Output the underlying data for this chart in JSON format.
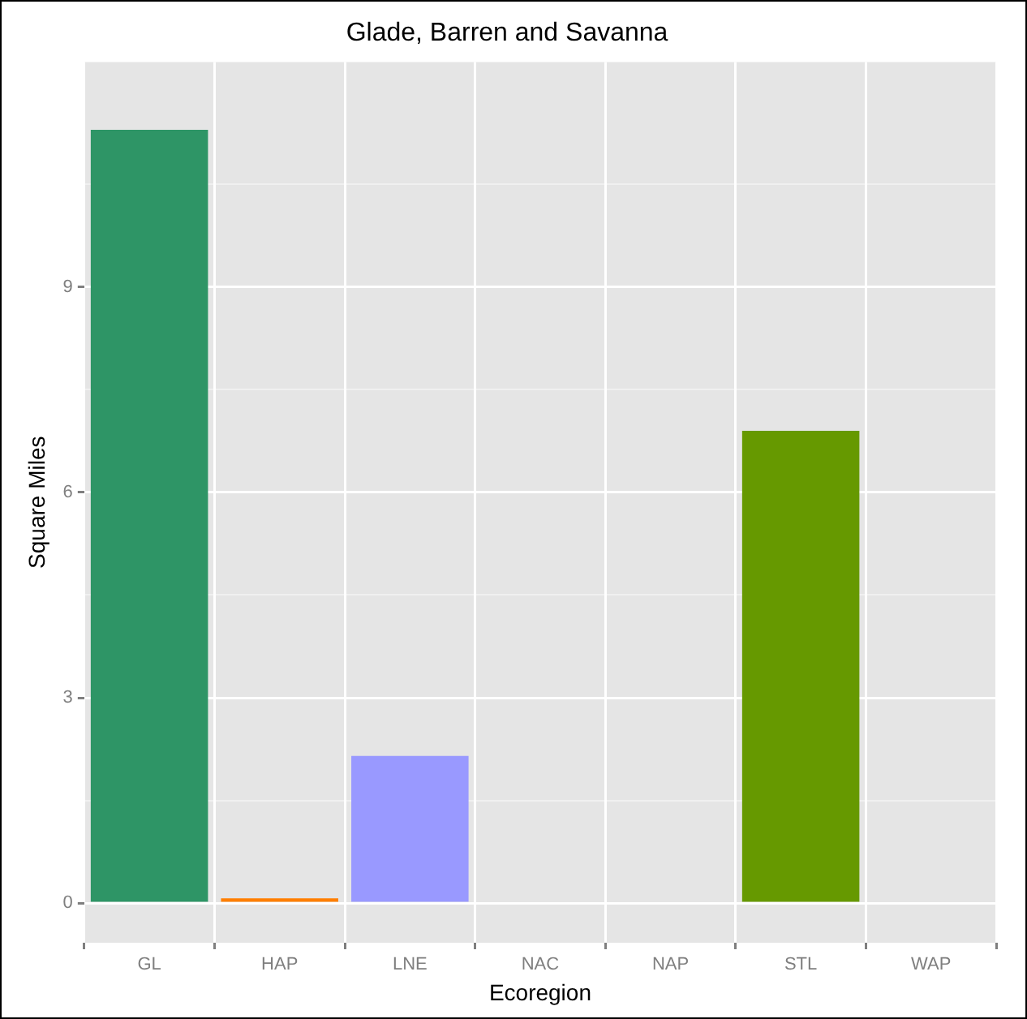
{
  "chart_data": {
    "type": "bar",
    "title": "Glade, Barren and Savanna",
    "xlabel": "Ecoregion",
    "ylabel": "Square Miles",
    "categories": [
      "GL",
      "HAP",
      "LNE",
      "NAC",
      "NAP",
      "STL",
      "WAP"
    ],
    "values": [
      11.3,
      0.07,
      2.15,
      0,
      0,
      6.9,
      0
    ],
    "colors": [
      "#2e9566",
      "#ff7f00",
      "#9999ff",
      "#999999",
      "#999999",
      "#669900",
      "#999999"
    ],
    "ylim": [
      -0.58,
      12.29
    ],
    "yticks": [
      0,
      {
        "value": 1.5,
        "label": null
      },
      3,
      {
        "value": 4.5,
        "label": null
      },
      6,
      {
        "value": 7.5,
        "label": null
      },
      9,
      {
        "value": 10.5,
        "label": null
      }
    ],
    "grid": true
  }
}
